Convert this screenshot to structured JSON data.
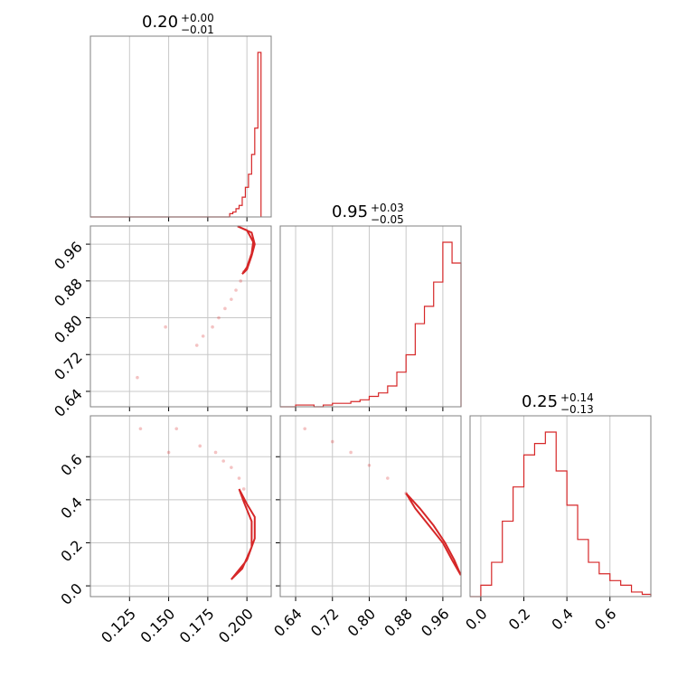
{
  "chart_data": {
    "type": "corner",
    "color": "#d62728",
    "parameters": [
      {
        "title_value": "0.20",
        "upper_error": "+0.00",
        "lower_error": "−0.01",
        "range": [
          0.1,
          0.2155
        ],
        "ticks": [
          0.125,
          0.15,
          0.175,
          0.2
        ],
        "tick_labels": [
          "0.125",
          "0.150",
          "0.175",
          "0.200"
        ]
      },
      {
        "title_value": "0.95",
        "upper_error": "+0.03",
        "lower_error": "−0.05",
        "range": [
          0.6065,
          0.9995
        ],
        "ticks": [
          0.64,
          0.72,
          0.8,
          0.88,
          0.96
        ],
        "tick_labels": [
          "0.64",
          "0.72",
          "0.80",
          "0.88",
          "0.96"
        ]
      },
      {
        "title_value": "0.25",
        "upper_error": "+0.14",
        "lower_error": "−0.13",
        "range": [
          -0.05,
          0.79
        ],
        "ticks": [
          0.0,
          0.2,
          0.4,
          0.6
        ],
        "tick_labels": [
          "0.0",
          "0.2",
          "0.4",
          "0.6"
        ]
      }
    ],
    "histograms": [
      {
        "parameter": 0,
        "bin_edges": [
          0.189,
          0.191,
          0.193,
          0.195,
          0.197,
          0.199,
          0.201,
          0.203,
          0.205,
          0.207,
          0.209
        ],
        "counts": [
          0.02,
          0.03,
          0.05,
          0.07,
          0.12,
          0.18,
          0.26,
          0.38,
          0.54,
          1.0,
          0.0
        ]
      },
      {
        "parameter": 1,
        "bin_edges": [
          0.64,
          0.66,
          0.68,
          0.7,
          0.72,
          0.74,
          0.76,
          0.78,
          0.8,
          0.82,
          0.84,
          0.86,
          0.88,
          0.9,
          0.92,
          0.94,
          0.96,
          0.98,
          1.0
        ],
        "counts": [
          0.01,
          0.01,
          0.0,
          0.01,
          0.02,
          0.02,
          0.03,
          0.04,
          0.06,
          0.08,
          0.12,
          0.2,
          0.3,
          0.48,
          0.58,
          0.72,
          0.95,
          0.83
        ]
      },
      {
        "parameter": 2,
        "bin_edges": [
          0.0,
          0.05,
          0.1,
          0.15,
          0.2,
          0.25,
          0.3,
          0.35,
          0.4,
          0.45,
          0.5,
          0.55,
          0.6,
          0.65,
          0.7,
          0.75,
          0.8
        ],
        "counts": [
          0.05,
          0.15,
          0.33,
          0.48,
          0.62,
          0.67,
          0.72,
          0.55,
          0.4,
          0.25,
          0.15,
          0.1,
          0.07,
          0.05,
          0.02,
          0.01
        ]
      }
    ],
    "pairs": [
      {
        "x_parameter": 0,
        "y_parameter": 1,
        "points": [
          [
            0.13,
            0.67
          ],
          [
            0.148,
            0.78
          ],
          [
            0.168,
            0.74
          ],
          [
            0.172,
            0.76
          ],
          [
            0.178,
            0.78
          ],
          [
            0.182,
            0.8
          ],
          [
            0.186,
            0.82
          ],
          [
            0.19,
            0.84
          ],
          [
            0.193,
            0.86
          ],
          [
            0.196,
            0.88
          ],
          [
            0.198,
            0.9
          ]
        ],
        "contours": [
          [
            [
              0.194,
              0.999
            ],
            [
              0.203,
              0.985
            ],
            [
              0.205,
              0.96
            ],
            [
              0.203,
              0.935
            ],
            [
              0.2,
              0.905
            ],
            [
              0.197,
              0.895
            ],
            [
              0.2,
              0.91
            ],
            [
              0.203,
              0.94
            ],
            [
              0.204,
              0.965
            ],
            [
              0.2,
              0.99
            ],
            [
              0.194,
              0.999
            ]
          ]
        ]
      },
      {
        "x_parameter": 0,
        "y_parameter": 2,
        "points": [
          [
            0.132,
            0.73
          ],
          [
            0.15,
            0.62
          ],
          [
            0.155,
            0.73
          ],
          [
            0.17,
            0.65
          ],
          [
            0.18,
            0.62
          ],
          [
            0.185,
            0.58
          ],
          [
            0.19,
            0.55
          ],
          [
            0.195,
            0.5
          ],
          [
            0.198,
            0.45
          ]
        ],
        "contours": [
          [
            [
              0.19,
              0.03
            ],
            [
              0.2,
              0.12
            ],
            [
              0.205,
              0.22
            ],
            [
              0.205,
              0.32
            ],
            [
              0.2,
              0.38
            ],
            [
              0.195,
              0.45
            ],
            [
              0.198,
              0.39
            ],
            [
              0.203,
              0.3
            ],
            [
              0.203,
              0.18
            ],
            [
              0.197,
              0.08
            ],
            [
              0.19,
              0.03
            ]
          ]
        ]
      },
      {
        "x_parameter": 1,
        "y_parameter": 2,
        "points": [
          [
            0.66,
            0.73
          ],
          [
            0.72,
            0.67
          ],
          [
            0.76,
            0.62
          ],
          [
            0.8,
            0.56
          ],
          [
            0.84,
            0.5
          ],
          [
            0.88,
            0.43
          ]
        ],
        "contours": [
          [
            [
              0.88,
              0.43
            ],
            [
              0.91,
              0.36
            ],
            [
              0.94,
              0.28
            ],
            [
              0.965,
              0.2
            ],
            [
              0.985,
              0.12
            ],
            [
              0.999,
              0.05
            ],
            [
              0.98,
              0.12
            ],
            [
              0.96,
              0.2
            ],
            [
              0.93,
              0.28
            ],
            [
              0.9,
              0.36
            ],
            [
              0.88,
              0.43
            ]
          ]
        ]
      }
    ]
  }
}
